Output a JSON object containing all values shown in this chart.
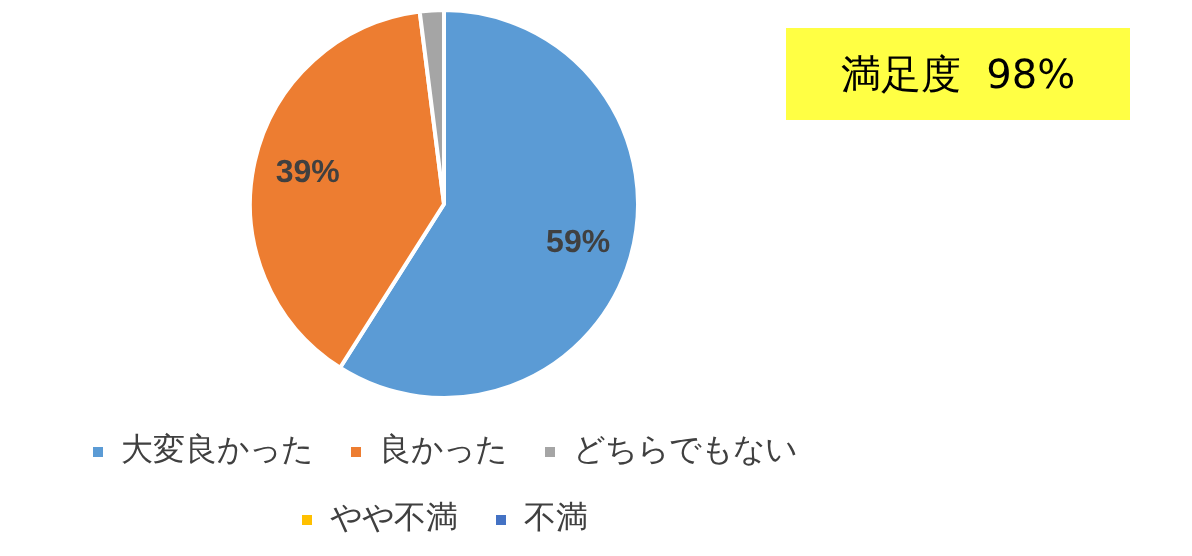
{
  "chart_data": {
    "type": "pie",
    "categories": [
      "大変良かった",
      "良かった",
      "どちらでもない",
      "やや不満",
      "不満"
    ],
    "values": [
      59,
      39,
      2,
      0,
      0
    ],
    "colors": [
      "#5b9bd5",
      "#ed7d31",
      "#a5a5a5",
      "#ffc000",
      "#4472c4"
    ],
    "value_labels": [
      "59%",
      "39%",
      null,
      null,
      null
    ],
    "annotations": [
      "満足度  98%"
    ],
    "legend": "bottom"
  }
}
